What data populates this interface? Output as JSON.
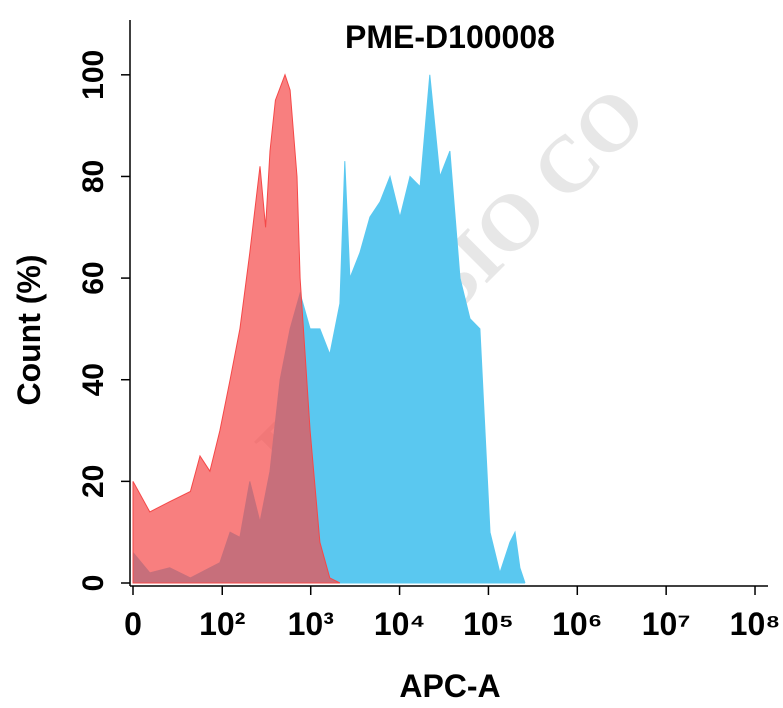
{
  "chart_data": {
    "type": "histogram-overlay",
    "title": "PME-D100008",
    "watermark": "DIMABIO CO",
    "x_label": "APC-A",
    "y_label": "Count  (%)",
    "xscale": "biexponential",
    "xlim": [
      0,
      140000000
    ],
    "ylim": [
      0,
      110
    ],
    "xticks": [
      0,
      {
        "value": 100,
        "label": "10²"
      },
      {
        "value": 1000,
        "label": "10³"
      },
      {
        "value": 10000,
        "label": "10⁴"
      },
      {
        "value": 100000,
        "label": "10⁵"
      },
      {
        "value": 1000000,
        "label": "10⁶"
      },
      {
        "value": 10000000,
        "label": "10⁷"
      },
      {
        "value": 100000000,
        "label": "10⁸"
      }
    ],
    "yticks": [
      0,
      20,
      40,
      60,
      80,
      100
    ],
    "series": [
      {
        "color": "#5ac8f0",
        "x": [
          0,
          9,
          22,
          42,
          72,
          94,
          123,
          159,
          206,
          268,
          348,
          452,
          586,
          760,
          984,
          1270,
          1640,
          2130,
          2420,
          2760,
          3580,
          4640,
          6020,
          7800,
          10100,
          13100,
          17000,
          21900,
          28400,
          36800,
          47800,
          62000,
          80200,
          104000,
          134600,
          174600,
          199000,
          226000,
          258000
        ],
        "values": [
          6,
          2,
          3,
          1,
          3,
          4,
          10,
          9,
          20,
          12,
          22,
          40,
          50,
          57,
          50,
          50,
          45,
          55,
          83,
          60,
          65,
          72,
          75,
          80,
          72,
          80,
          78,
          100,
          80,
          85,
          60,
          52,
          50,
          10,
          2,
          8,
          10,
          3,
          0
        ]
      },
      {
        "color": "#f54848",
        "x": [
          0,
          9,
          22,
          42,
          55,
          72,
          94,
          123,
          159,
          206,
          268,
          310,
          348,
          400,
          514,
          586,
          700,
          760,
          984,
          1270,
          1640,
          2130
        ],
        "values": [
          20,
          14,
          16,
          18,
          25,
          22,
          30,
          40,
          50,
          65,
          82,
          70,
          85,
          95,
          100,
          97,
          80,
          60,
          30,
          8,
          1,
          0
        ]
      }
    ]
  }
}
